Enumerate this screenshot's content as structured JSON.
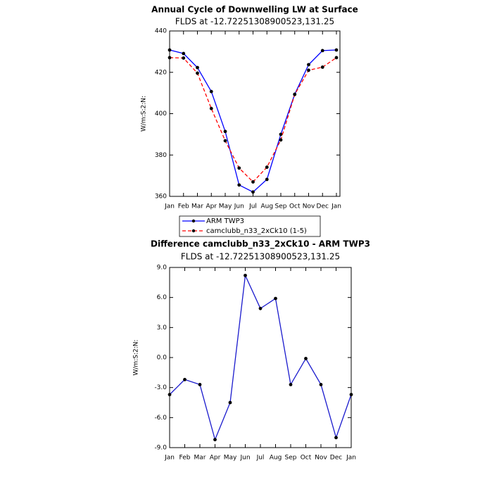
{
  "chart_data": [
    {
      "type": "line",
      "title": "Annual Cycle of Downwelling LW at Surface",
      "subtitle": "FLDS at -12.72251308900523,131.25",
      "ylabel": "W/m:S:2:N:",
      "categories": [
        "Jan",
        "Feb",
        "Mar",
        "Apr",
        "May",
        "Jun",
        "Jul",
        "Aug",
        "Sep",
        "Oct",
        "Nov",
        "Dec",
        "Jan"
      ],
      "ylim": [
        360,
        440
      ],
      "yticks": [
        360,
        380,
        400,
        420,
        440
      ],
      "series": [
        {
          "name": "ARM TWP3",
          "color": "#0000ff",
          "style": "solid",
          "values": [
            430.8,
            429.1,
            422.3,
            410.7,
            391.4,
            365.5,
            362.1,
            368.2,
            390.0,
            409.4,
            423.7,
            430.5,
            430.8
          ]
        },
        {
          "name": "camclubb_n33_2xCk10 (1-5)",
          "color": "#ff0000",
          "style": "dashed",
          "values": [
            427.1,
            426.9,
            419.6,
            402.5,
            386.9,
            373.7,
            367.0,
            374.1,
            387.3,
            409.3,
            421.0,
            422.5,
            427.1
          ]
        }
      ]
    },
    {
      "type": "line",
      "title": "Difference camclubb_n33_2xCk10 - ARM TWP3",
      "subtitle": "FLDS at -12.72251308900523,131.25",
      "ylabel": "W/m:S:2:N:",
      "categories": [
        "Jan",
        "Feb",
        "Mar",
        "Apr",
        "May",
        "Jun",
        "Jul",
        "Aug",
        "Sep",
        "Oct",
        "Nov",
        "Dec",
        "Jan"
      ],
      "ylim": [
        -9,
        9
      ],
      "yticks": [
        {
          "value": -9,
          "label": "-9.0"
        },
        {
          "value": -6,
          "label": "-6.0"
        },
        {
          "value": -3,
          "label": "-3.0"
        },
        {
          "value": 0,
          "label": "0.0"
        },
        {
          "value": 3,
          "label": "3.0"
        },
        {
          "value": 6,
          "label": "6.0"
        },
        {
          "value": 9,
          "label": "9.0"
        }
      ],
      "series": [
        {
          "color": "#1a1acd",
          "style": "solid",
          "values": [
            -3.7,
            -2.2,
            -2.7,
            -8.2,
            -4.5,
            8.2,
            4.9,
            5.9,
            -2.7,
            -0.1,
            -2.7,
            -8.0,
            -3.7
          ]
        }
      ]
    }
  ]
}
